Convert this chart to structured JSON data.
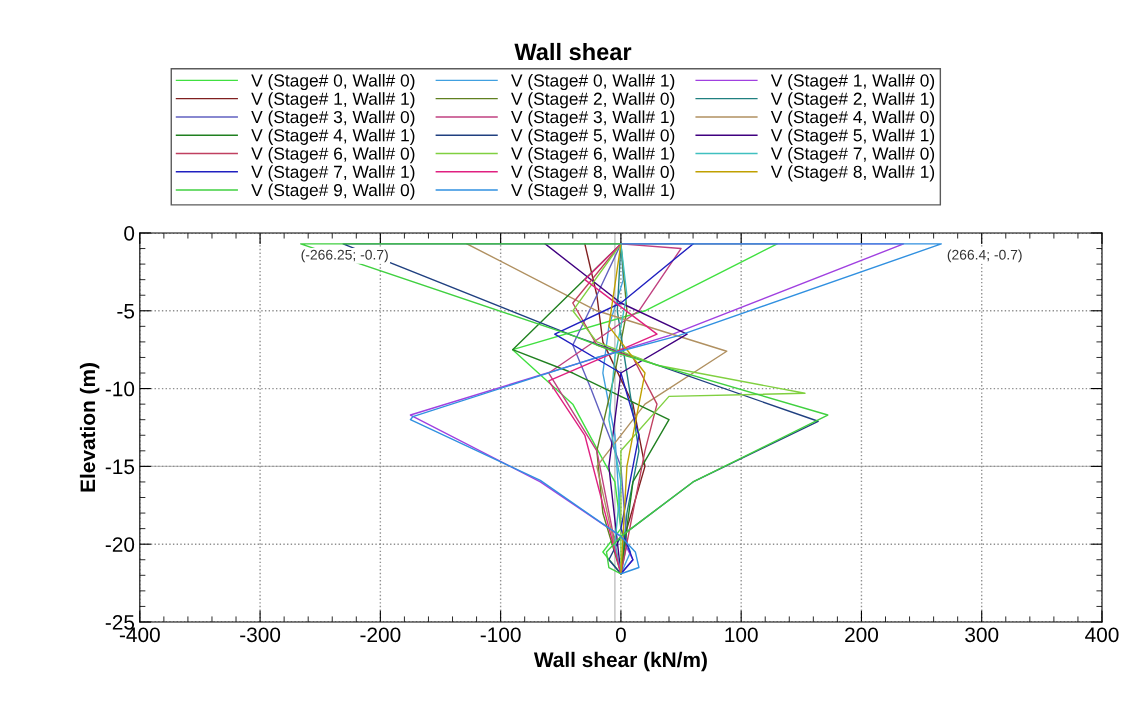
{
  "chart_data": {
    "type": "line",
    "title": "Wall shear",
    "xlabel": "Wall shear (kN/m)",
    "ylabel": "Elevation (m)",
    "xlim": [
      -400,
      400
    ],
    "xticks": [
      -400,
      -300,
      -200,
      -100,
      0,
      100,
      200,
      300,
      400
    ],
    "ylim": [
      -25,
      0
    ],
    "yticks": [
      -25,
      -20,
      -15,
      -10,
      -5,
      0
    ],
    "grid": true,
    "legend": "top",
    "line_style": "solid",
    "marker": "none",
    "ref_lines": [
      {
        "axis": "x",
        "value": -5,
        "color": "#c0c0c0"
      },
      {
        "axis": "y",
        "value": -15,
        "color": "#c0c0c0"
      }
    ],
    "annotations": [
      {
        "text": "(-266.25; -0.7)",
        "x": -266.25,
        "y": -0.7
      },
      {
        "text": "(266.4; -0.7)",
        "x": 266.4,
        "y": -0.7
      }
    ],
    "series": [
      {
        "name": "V (Stage# 0, Wall# 0)",
        "color": "#40e040",
        "x": [
          0,
          130,
          20,
          -90,
          -40,
          -5,
          0,
          -15,
          0
        ],
        "values": [
          -0.7,
          -0.7,
          -5,
          -7.5,
          -11,
          -16,
          -19,
          -20.5,
          -21.9
        ]
      },
      {
        "name": "V (Stage# 0, Wall# 1)",
        "color": "#40a0e0",
        "x": [
          0,
          2,
          -10,
          -15,
          -5,
          0,
          8,
          0
        ],
        "values": [
          -0.7,
          -3,
          -6,
          -9,
          -13,
          -19,
          -20.5,
          -21.9
        ]
      },
      {
        "name": "V (Stage# 1, Wall# 0)",
        "color": "#a040e0",
        "x": [
          0,
          235,
          40,
          -175,
          -67,
          0,
          10,
          0
        ],
        "values": [
          -0.7,
          -0.7,
          -6.6,
          -11.7,
          -16,
          -19.5,
          -21,
          -21.9
        ]
      },
      {
        "name": "V (Stage# 1, Wall# 1)",
        "color": "#802020",
        "x": [
          -30,
          -20,
          -15,
          10,
          20,
          5,
          0
        ],
        "values": [
          -0.7,
          -4,
          -7,
          -11,
          -15,
          -19,
          -21.9
        ]
      },
      {
        "name": "V (Stage# 2, Wall# 0)",
        "color": "#608020",
        "x": [
          0,
          5,
          -5,
          -20,
          -15,
          0
        ],
        "values": [
          -0.7,
          -5,
          -9,
          -14,
          -18,
          -21.9
        ]
      },
      {
        "name": "V (Stage# 2, Wall# 1)",
        "color": "#208080",
        "x": [
          0,
          -3,
          5,
          15,
          5,
          0
        ],
        "values": [
          -0.7,
          -5,
          -9,
          -14,
          -18,
          -21.9
        ]
      },
      {
        "name": "V (Stage# 3, Wall# 0)",
        "color": "#6060c0",
        "x": [
          0,
          -20,
          -40,
          -25,
          0,
          5,
          0
        ],
        "values": [
          -0.7,
          -4,
          -7.2,
          -10,
          -15,
          -20,
          -21.9
        ]
      },
      {
        "name": "V (Stage# 3, Wall# 1)",
        "color": "#c04080",
        "x": [
          0,
          50,
          15,
          -60,
          -20,
          0
        ],
        "values": [
          -0.7,
          -1,
          -5,
          -9,
          -14,
          -21.9
        ]
      },
      {
        "name": "V (Stage# 4, Wall# 0)",
        "color": "#b09060",
        "x": [
          -128,
          -20,
          88,
          20,
          -20,
          0
        ],
        "values": [
          -0.7,
          -5,
          -7.6,
          -11,
          -15,
          -21.9
        ]
      },
      {
        "name": "V (Stage# 4, Wall# 1)",
        "color": "#208020",
        "x": [
          0,
          -90,
          -40,
          40,
          10,
          0
        ],
        "values": [
          -0.7,
          -7.5,
          -9,
          -12,
          -16,
          -21.9
        ]
      },
      {
        "name": "V (Stage# 5, Wall# 0)",
        "color": "#204080",
        "x": [
          0,
          -231,
          -40,
          164,
          60,
          0,
          -10,
          0
        ],
        "values": [
          -0.7,
          -0.7,
          -6.6,
          -12.1,
          -16,
          -19.5,
          -21,
          -21.9
        ]
      },
      {
        "name": "V (Stage# 5, Wall# 1)",
        "color": "#400080",
        "x": [
          -63,
          0,
          55,
          0,
          -10,
          0
        ],
        "values": [
          -0.7,
          -4.5,
          -6.5,
          -9,
          -15,
          -21.9
        ]
      },
      {
        "name": "V (Stage# 6, Wall# 0)",
        "color": "#c04060",
        "x": [
          0,
          -40,
          -20,
          10,
          30,
          20,
          0
        ],
        "values": [
          -0.7,
          -4.5,
          -7.2,
          -8,
          -11,
          -14,
          -21.9
        ]
      },
      {
        "name": "V (Stage# 6, Wall# 1)",
        "color": "#80d040",
        "x": [
          0,
          -40,
          -20,
          30,
          153,
          40,
          0,
          0
        ],
        "values": [
          -0.7,
          -5,
          -7,
          -8.5,
          -10.3,
          -10.5,
          -14,
          -21.9
        ]
      },
      {
        "name": "V (Stage# 7, Wall# 0)",
        "color": "#40c0c0",
        "x": [
          0,
          5,
          -5,
          -10,
          0,
          -5,
          0
        ],
        "values": [
          -0.7,
          -4,
          -8,
          -12,
          -16,
          -20,
          -21.9
        ]
      },
      {
        "name": "V (Stage# 7, Wall# 1)",
        "color": "#2020c0",
        "x": [
          60,
          0,
          -55,
          0,
          15,
          0,
          10,
          0
        ],
        "values": [
          -0.7,
          -4.5,
          -6.5,
          -9,
          -13,
          -19,
          -21,
          -21.9
        ]
      },
      {
        "name": "V (Stage# 8, Wall# 0)",
        "color": "#e02080",
        "x": [
          0,
          -30,
          30,
          -60,
          -30,
          0
        ],
        "values": [
          -0.7,
          -3,
          -6.5,
          -9.5,
          -13,
          -21.9
        ]
      },
      {
        "name": "V (Stage# 8, Wall# 1)",
        "color": "#c0a000",
        "x": [
          0,
          -10,
          20,
          5,
          0
        ],
        "values": [
          -0.7,
          -6,
          -9,
          -15,
          -21.9
        ]
      },
      {
        "name": "V (Stage# 9, Wall# 0)",
        "color": "#40d040",
        "x": [
          0,
          -266.25,
          -40,
          0,
          172,
          60,
          0,
          -12,
          -10,
          0
        ],
        "values": [
          -0.7,
          -0.7,
          -6.6,
          -7.8,
          -11.7,
          -16,
          -19.5,
          -20.5,
          -21.5,
          -21.9
        ]
      },
      {
        "name": "V (Stage# 9, Wall# 1)",
        "color": "#3090e0",
        "x": [
          0,
          266.4,
          48,
          -20,
          -173,
          -175,
          -67,
          0,
          12,
          15,
          0
        ],
        "values": [
          -0.7,
          -0.7,
          -6.6,
          -8,
          -11.8,
          -12,
          -15.9,
          -19.5,
          -20.5,
          -21.5,
          -21.9
        ]
      }
    ]
  }
}
